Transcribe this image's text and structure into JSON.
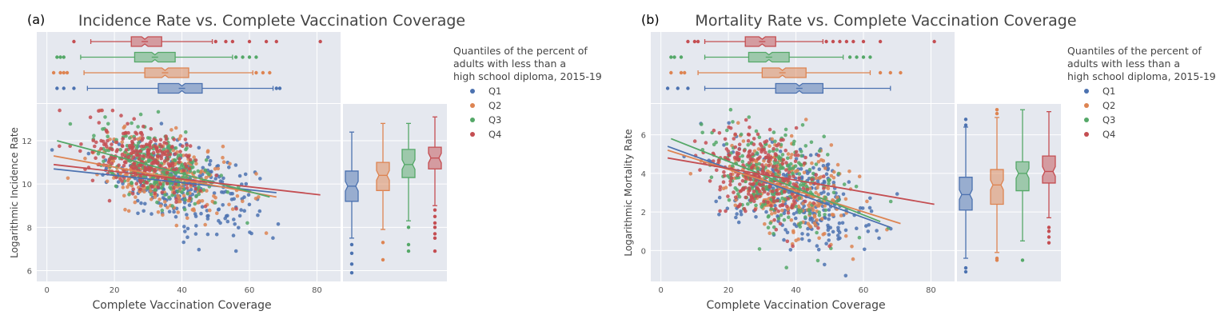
{
  "figure": {
    "legend_title": [
      "Quantiles of the percent of",
      "adults with less than a",
      "high school diploma, 2015-19"
    ]
  },
  "colors": {
    "Q1": "#4c72b0",
    "Q2": "#dd8452",
    "Q3": "#55a868",
    "Q4": "#c44e52"
  },
  "chart_data": [
    {
      "type": "scatter",
      "panel_label": "(a)",
      "title": "Incidence Rate vs. Complete Vaccination Coverage",
      "xlabel": "Complete Vaccination Coverage",
      "ylabel": "Logarithmic Incidence Rate",
      "xlim": [
        -3,
        87
      ],
      "ylim": [
        5.5,
        13.7
      ],
      "xticks": [
        0,
        20,
        40,
        60,
        80
      ],
      "yticks": [
        6,
        8,
        10,
        12
      ],
      "legend": [
        "Q1",
        "Q2",
        "Q3",
        "Q4"
      ],
      "scatter_center": [
        {
          "name": "Q1",
          "x": 40,
          "y": 9.9,
          "sx": 11,
          "sy": 0.9
        },
        {
          "name": "Q2",
          "x": 35,
          "y": 10.4,
          "sx": 10,
          "sy": 0.9
        },
        {
          "name": "Q3",
          "x": 33,
          "y": 10.8,
          "sx": 9,
          "sy": 0.8
        },
        {
          "name": "Q4",
          "x": 29,
          "y": 11.1,
          "sx": 8,
          "sy": 0.75
        }
      ],
      "trend_lines": [
        {
          "name": "Q1",
          "x": [
            2,
            68
          ],
          "y": [
            10.7,
            9.6
          ]
        },
        {
          "name": "Q2",
          "x": [
            2,
            68
          ],
          "y": [
            11.3,
            9.4
          ]
        },
        {
          "name": "Q3",
          "x": [
            3,
            66
          ],
          "y": [
            12.0,
            9.4
          ]
        },
        {
          "name": "Q4",
          "x": [
            2,
            81
          ],
          "y": [
            10.9,
            9.5
          ]
        }
      ],
      "x_box": [
        {
          "name": "Q1",
          "lo": 12,
          "q1": 33,
          "med": 40,
          "q3": 46,
          "hi": 67,
          "out": [
            3,
            5,
            8,
            68,
            69
          ]
        },
        {
          "name": "Q2",
          "lo": 11,
          "q1": 29,
          "med": 35,
          "q3": 42,
          "hi": 61,
          "out": [
            2,
            4,
            5,
            6,
            62,
            64,
            66
          ]
        },
        {
          "name": "Q3",
          "lo": 10,
          "q1": 26,
          "med": 32,
          "q3": 38,
          "hi": 55,
          "out": [
            3,
            4,
            5,
            56,
            58,
            60,
            62
          ]
        },
        {
          "name": "Q4",
          "lo": 13,
          "q1": 25,
          "med": 29,
          "q3": 34,
          "hi": 49,
          "out": [
            8,
            50,
            53,
            55,
            60,
            65,
            68,
            81
          ]
        }
      ],
      "y_box": [
        {
          "name": "Q1",
          "lo": 7.5,
          "q1": 9.2,
          "med": 9.9,
          "q3": 10.6,
          "hi": 12.4,
          "out": [
            7.2,
            6.8,
            6.3,
            5.9
          ]
        },
        {
          "name": "Q2",
          "lo": 7.9,
          "q1": 9.7,
          "med": 10.4,
          "q3": 11.0,
          "hi": 12.8,
          "out": [
            7.3,
            6.5
          ]
        },
        {
          "name": "Q3",
          "lo": 8.3,
          "q1": 10.3,
          "med": 10.9,
          "q3": 11.6,
          "hi": 12.8,
          "out": [
            8.0,
            7.2,
            6.9
          ]
        },
        {
          "name": "Q4",
          "lo": 9.0,
          "q1": 10.7,
          "med": 11.2,
          "q3": 11.7,
          "hi": 13.1,
          "out": [
            8.8,
            8.5,
            8.2,
            8.0,
            7.7,
            7.5,
            6.9
          ]
        }
      ]
    },
    {
      "type": "scatter",
      "panel_label": "(b)",
      "title": "Mortality Rate vs. Complete Vaccination Coverage",
      "xlabel": "Complete Vaccination Coverage",
      "ylabel": "Logarithmic Mortality Rate",
      "xlim": [
        -3,
        87
      ],
      "ylim": [
        -1.6,
        7.6
      ],
      "xticks": [
        0,
        20,
        40,
        60,
        80
      ],
      "yticks": [
        0,
        2,
        4,
        6
      ],
      "legend": [
        "Q1",
        "Q2",
        "Q3",
        "Q4"
      ],
      "scatter_center": [
        {
          "name": "Q1",
          "x": 41,
          "y": 2.8,
          "sx": 11,
          "sy": 1.2
        },
        {
          "name": "Q2",
          "x": 37,
          "y": 3.2,
          "sx": 10,
          "sy": 1.2
        },
        {
          "name": "Q3",
          "x": 34,
          "y": 3.7,
          "sx": 9,
          "sy": 1.2
        },
        {
          "name": "Q4",
          "x": 30,
          "y": 4.0,
          "sx": 8,
          "sy": 1.1
        }
      ],
      "trend_lines": [
        {
          "name": "Q1",
          "x": [
            2,
            68
          ],
          "y": [
            5.4,
            1.2
          ]
        },
        {
          "name": "Q2",
          "x": [
            2,
            71
          ],
          "y": [
            5.2,
            1.4
          ]
        },
        {
          "name": "Q3",
          "x": [
            3,
            65
          ],
          "y": [
            5.8,
            1.5
          ]
        },
        {
          "name": "Q4",
          "x": [
            2,
            81
          ],
          "y": [
            4.8,
            2.4
          ]
        }
      ],
      "x_box": [
        {
          "name": "Q1",
          "lo": 13,
          "q1": 34,
          "med": 41,
          "q3": 48,
          "hi": 68,
          "out": [
            2,
            5,
            8
          ]
        },
        {
          "name": "Q2",
          "lo": 11,
          "q1": 30,
          "med": 36,
          "q3": 43,
          "hi": 62,
          "out": [
            3,
            6,
            7,
            65,
            68,
            71
          ]
        },
        {
          "name": "Q3",
          "lo": 13,
          "q1": 26,
          "med": 32,
          "q3": 38,
          "hi": 54,
          "out": [
            3,
            4,
            6,
            56,
            58,
            60,
            62
          ]
        },
        {
          "name": "Q4",
          "lo": 13,
          "q1": 25,
          "med": 30,
          "q3": 34,
          "hi": 48,
          "out": [
            8,
            10,
            11,
            49,
            51,
            53,
            55,
            57,
            60,
            65,
            81
          ]
        }
      ],
      "y_box": [
        {
          "name": "Q1",
          "lo": -0.4,
          "q1": 2.1,
          "med": 2.9,
          "q3": 3.8,
          "hi": 6.4,
          "out": [
            6.5,
            6.8,
            -0.9,
            -1.1
          ]
        },
        {
          "name": "Q2",
          "lo": -0.1,
          "q1": 2.4,
          "med": 3.4,
          "q3": 4.2,
          "hi": 6.9,
          "out": [
            7.1,
            7.3,
            -0.4,
            -0.5
          ]
        },
        {
          "name": "Q3",
          "lo": 0.5,
          "q1": 3.1,
          "med": 4.0,
          "q3": 4.6,
          "hi": 7.3,
          "out": [
            -0.5
          ]
        },
        {
          "name": "Q4",
          "lo": 1.7,
          "q1": 3.5,
          "med": 4.1,
          "q3": 4.9,
          "hi": 7.2,
          "out": [
            1.2,
            1.0,
            0.7,
            0.4
          ]
        }
      ]
    }
  ]
}
